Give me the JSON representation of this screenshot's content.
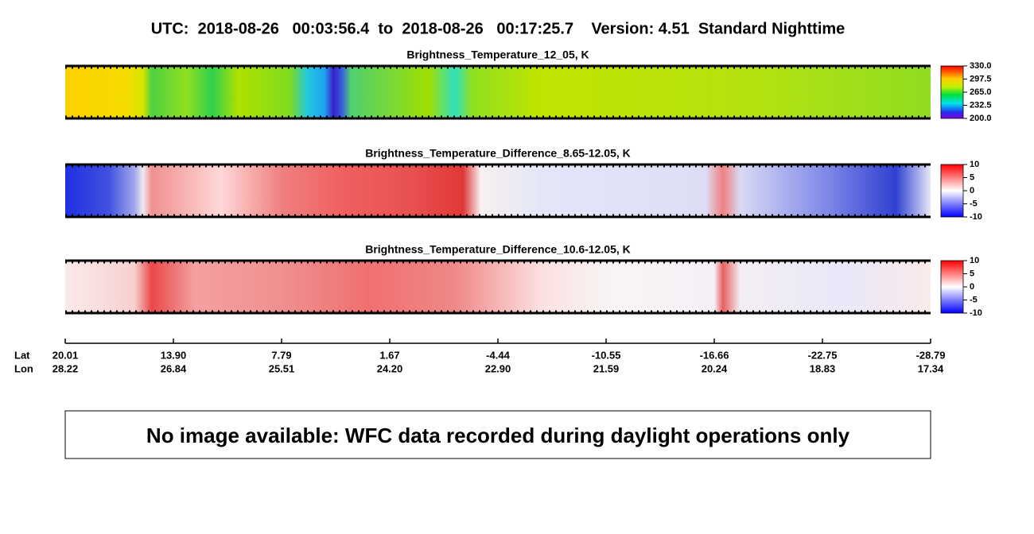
{
  "header": {
    "title": "UTC:  2018-08-26   00:03:56.4  to  2018-08-26   00:17:25.7    Version: 4.51  Standard Nighttime"
  },
  "panels": [
    {
      "title": "Brightness_Temperature_12_05, K",
      "colorbar": [
        "330.0",
        "297.5",
        "265.0",
        "232.5",
        "200.0"
      ]
    },
    {
      "title": "Brightness_Temperature_Difference_8.65-12.05, K",
      "colorbar": [
        "10",
        "5",
        "0",
        "-5",
        "-10"
      ]
    },
    {
      "title": "Brightness_Temperature_Difference_10.6-12.05, K",
      "colorbar": [
        "10",
        "5",
        "0",
        "-5",
        "-10"
      ]
    }
  ],
  "axis": {
    "lat_label": "Lat",
    "lon_label": "Lon",
    "lat": [
      "20.01",
      "13.90",
      "7.79",
      "1.67",
      "-4.44",
      "-10.55",
      "-16.66",
      "-22.75",
      "-28.79"
    ],
    "lon": [
      "28.22",
      "26.84",
      "25.51",
      "24.20",
      "22.90",
      "21.59",
      "20.24",
      "18.83",
      "17.34"
    ]
  },
  "message": "No image available: WFC data recorded during daylight operations only"
}
